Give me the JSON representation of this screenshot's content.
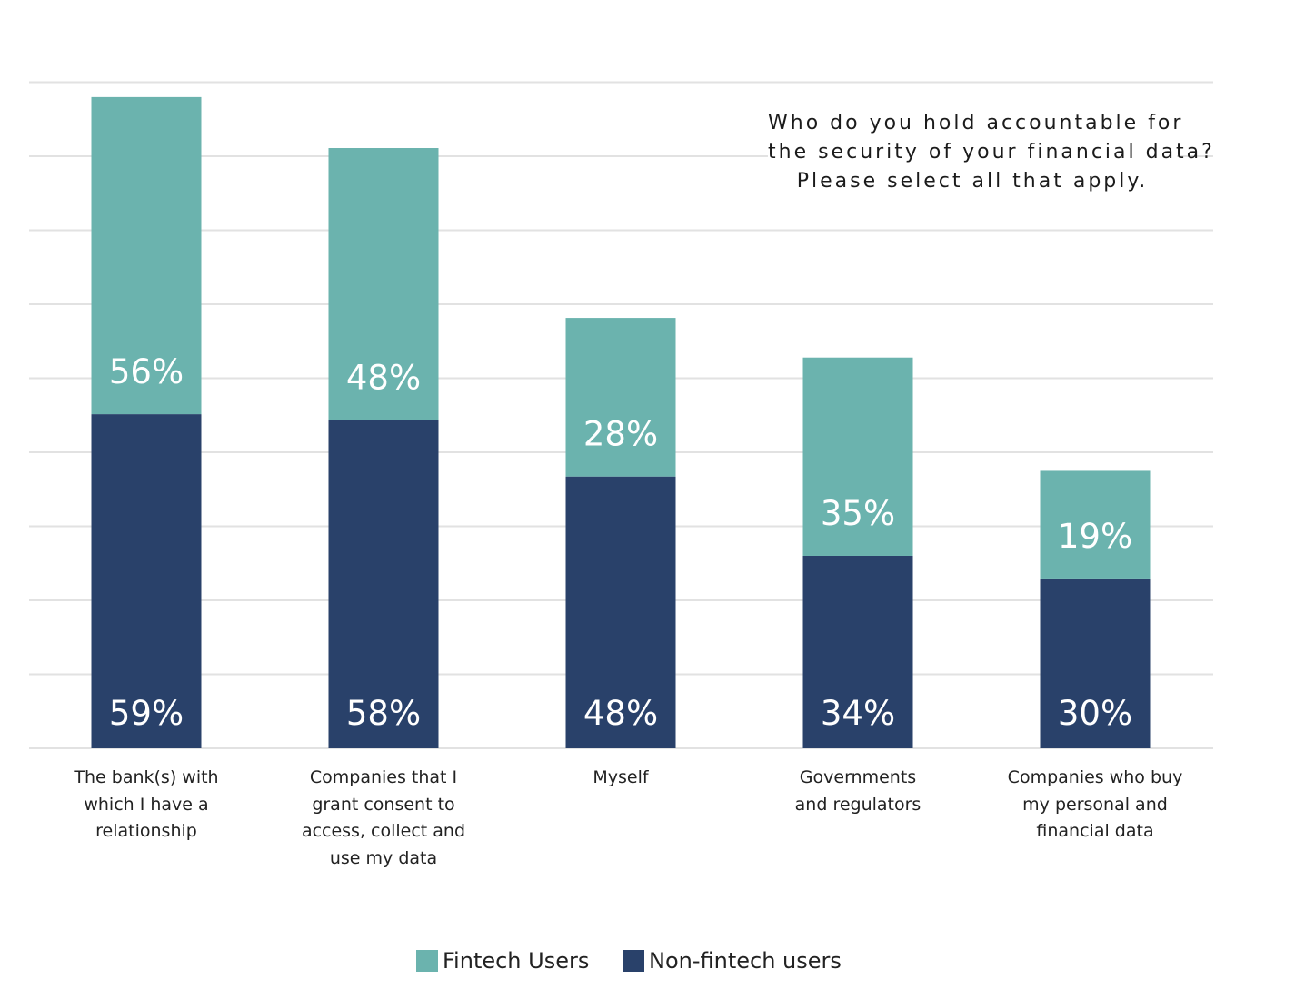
{
  "chart_data": {
    "type": "bar",
    "stacked": true,
    "title": [
      "Who do you hold accountable for",
      "the security of your financial data?",
      "Please select all that apply."
    ],
    "categories": [
      [
        "The bank(s) with",
        "which I have a",
        "relationship"
      ],
      [
        "Companies that I",
        "grant consent to",
        "access, collect and",
        "use my data"
      ],
      [
        "Myself"
      ],
      [
        "Governments",
        "and regulators"
      ],
      [
        "Companies who buy",
        "my personal and",
        "financial data"
      ]
    ],
    "series": [
      {
        "name": "Non-fintech users",
        "values": [
          59,
          58,
          48,
          34,
          30
        ],
        "labels": [
          "59%",
          "58%",
          "48%",
          "34%",
          "30%"
        ],
        "color": "#29416a"
      },
      {
        "name": "Fintech Users",
        "values": [
          56,
          48,
          28,
          35,
          19
        ],
        "labels": [
          "56%",
          "48%",
          "28%",
          "35%",
          "19%"
        ],
        "color": "#6bb3ae"
      }
    ],
    "ylim": [
      0,
      123
    ],
    "grid": true,
    "legend_position": "bottom-center",
    "gridline_color": "#e2e2e2"
  },
  "legend": [
    {
      "label": "Fintech Users",
      "color": "#6bb3ae"
    },
    {
      "label": "Non-fintech users",
      "color": "#29416a"
    }
  ]
}
